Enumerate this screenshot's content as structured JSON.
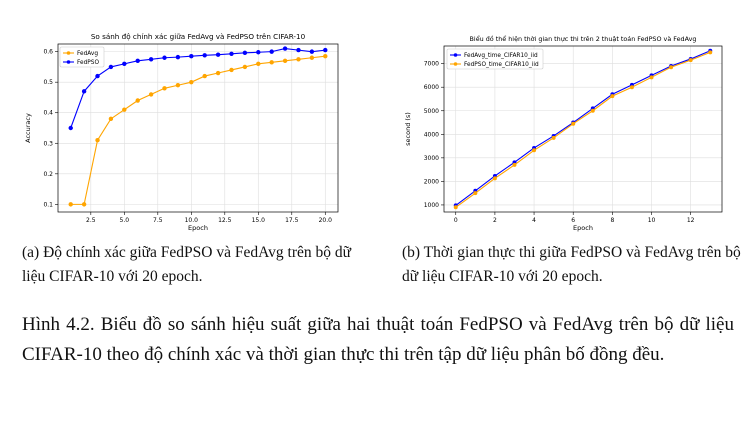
{
  "figure_a": {
    "caption": "(a) Độ chính xác giữa FedPSO và FedAvg trên bộ dữ liệu CIFAR-10 với 20 epoch."
  },
  "figure_b": {
    "caption": "(b) Thời gian thực thi giữa FedPSO và FedAvg trên bộ dữ liệu CIFAR-10 với 20 epoch."
  },
  "main_caption": "Hình 4.2. Biểu đồ so sánh hiệu suất giữa hai thuật toán FedPSO và FedAvg trên bộ dữ liệu CIFAR-10 theo độ chính xác và thời gian thực thi trên tập dữ liệu phân bố đồng đều.",
  "chart_data": [
    {
      "type": "line",
      "title": "So sánh độ chính xác giữa FedAvg và FedPSO trên CIFAR-10",
      "xlabel": "Epoch",
      "ylabel": "Accuracy",
      "xlim": [
        0.05,
        20.95
      ],
      "ylim": [
        0.075,
        0.625
      ],
      "xticks": [
        2.5,
        5.0,
        7.5,
        10.0,
        12.5,
        15.0,
        17.5,
        20.0
      ],
      "xtick_labels": [
        "2.5",
        "5.0",
        "7.5",
        "10.0",
        "12.5",
        "15.0",
        "17.5",
        "20.0"
      ],
      "yticks": [
        0.1,
        0.2,
        0.3,
        0.4,
        0.5,
        0.6
      ],
      "ytick_labels": [
        "0.1",
        "0.2",
        "0.3",
        "0.4",
        "0.5",
        "0.6"
      ],
      "grid": true,
      "legend_position": "top-left",
      "x": [
        1,
        2,
        3,
        4,
        5,
        6,
        7,
        8,
        9,
        10,
        11,
        12,
        13,
        14,
        15,
        16,
        17,
        18,
        19,
        20
      ],
      "series": [
        {
          "name": "FedAvg",
          "color": "#ffa500",
          "values": [
            0.1,
            0.1,
            0.31,
            0.38,
            0.41,
            0.44,
            0.46,
            0.48,
            0.49,
            0.5,
            0.52,
            0.53,
            0.54,
            0.55,
            0.56,
            0.565,
            0.57,
            0.575,
            0.58,
            0.585
          ]
        },
        {
          "name": "FedPSO",
          "color": "#0000ff",
          "values": [
            0.35,
            0.47,
            0.52,
            0.55,
            0.56,
            0.57,
            0.575,
            0.58,
            0.582,
            0.585,
            0.588,
            0.59,
            0.593,
            0.596,
            0.598,
            0.6,
            0.61,
            0.605,
            0.6,
            0.605
          ]
        }
      ]
    },
    {
      "type": "line",
      "title": "Biểu đồ thể hiện thời gian thực thi trên 2 thuật toán FedPSO và FedAvg",
      "xlabel": "Epoch",
      "ylabel": "second (s)",
      "xlim": [
        -0.6,
        13.6
      ],
      "ylim": [
        700,
        7750
      ],
      "xticks": [
        0,
        2,
        4,
        6,
        8,
        10,
        12
      ],
      "xtick_labels": [
        "0",
        "2",
        "4",
        "6",
        "8",
        "10",
        "12"
      ],
      "yticks": [
        1000,
        2000,
        3000,
        4000,
        5000,
        6000,
        7000
      ],
      "ytick_labels": [
        "1000",
        "2000",
        "3000",
        "4000",
        "5000",
        "6000",
        "7000"
      ],
      "grid": true,
      "legend_position": "top-left",
      "x": [
        0,
        1,
        2,
        3,
        4,
        5,
        6,
        7,
        8,
        9,
        10,
        11,
        12,
        13
      ],
      "series": [
        {
          "name": "FedAvg_time_CIFAR10_iid",
          "color": "#0000ff",
          "values": [
            980,
            1600,
            2230,
            2810,
            3420,
            3930,
            4500,
            5100,
            5700,
            6100,
            6500,
            6900,
            7200,
            7550
          ]
        },
        {
          "name": "FedPSO_time_CIFAR10_iid",
          "color": "#ffa500",
          "values": [
            900,
            1500,
            2130,
            2700,
            3320,
            3850,
            4450,
            5000,
            5620,
            6000,
            6420,
            6850,
            7150,
            7480
          ]
        }
      ]
    }
  ]
}
